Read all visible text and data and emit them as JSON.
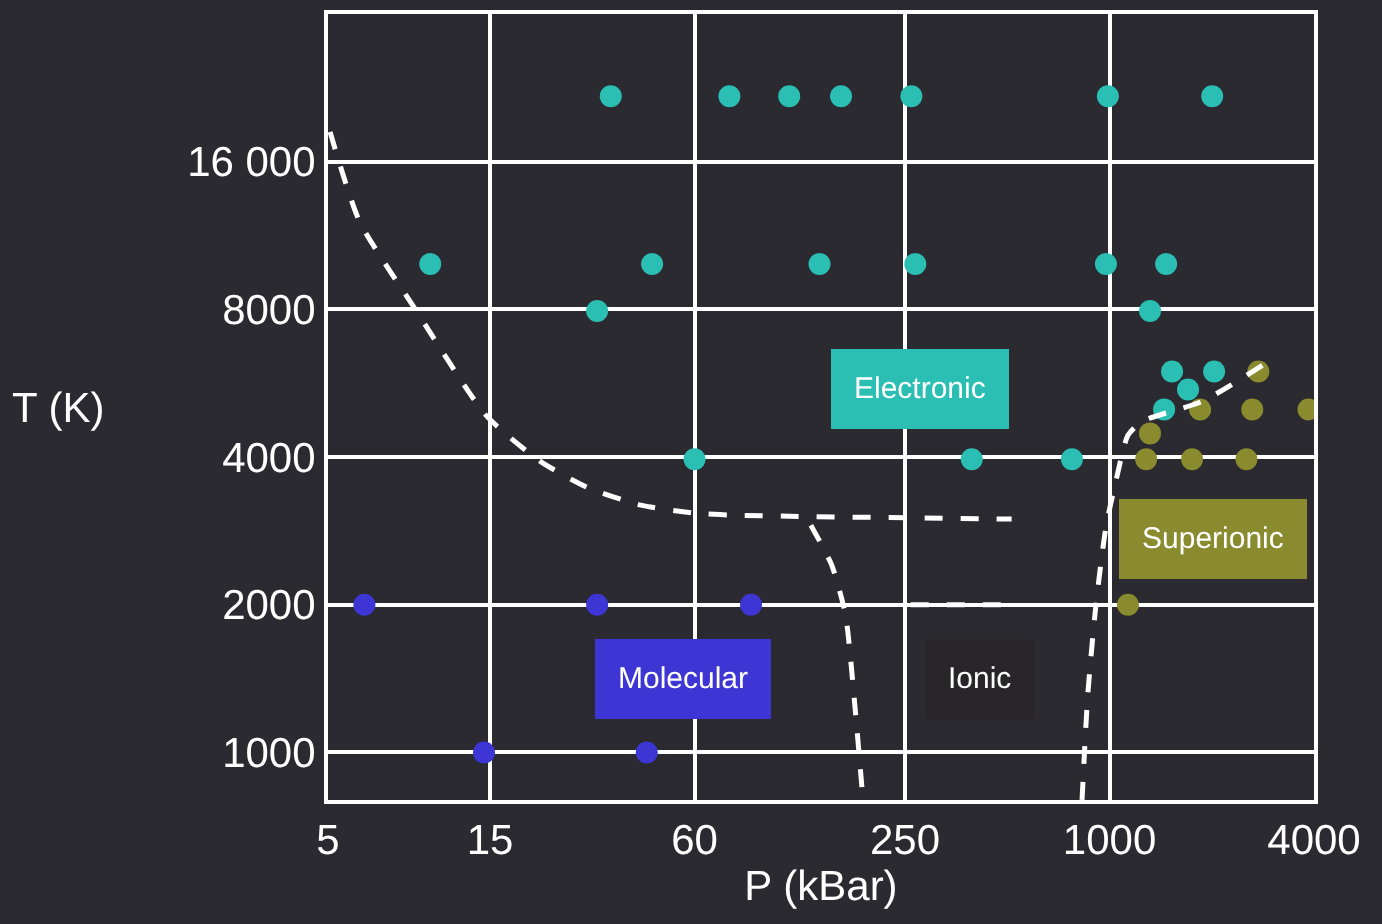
{
  "chart_data": {
    "type": "scatter",
    "xlabel": "P (kBar)",
    "ylabel": "T (K)",
    "log": "xy",
    "grid": true,
    "xlim": [
      5,
      4000
    ],
    "ylim": [
      800,
      32000
    ],
    "xticks": [
      5,
      15,
      60,
      250,
      1000,
      4000
    ],
    "yticks": [
      1000,
      2000,
      4000,
      8000,
      {
        "value": 16000,
        "label": "16 000"
      }
    ],
    "series": [
      {
        "marker": "circle",
        "color": "#2bbfb3",
        "x": [
          34,
          76,
          114,
          162,
          261,
          989,
          2006,
          10,
          45,
          140,
          268,
          976,
          1468,
          31,
          1316,
          60,
          393,
          775,
          1528,
          2032,
          1703,
          1448
        ],
        "values": [
          21750,
          21750,
          21750,
          21750,
          21750,
          21750,
          21750,
          9900,
          9900,
          9900,
          9900,
          9900,
          9900,
          7940,
          7940,
          3960,
          3960,
          3960,
          5975,
          5975,
          5495,
          5003
        ]
      },
      {
        "marker": "circle",
        "color": "#8a8a2e",
        "x": [
          2743,
          1848,
          2632,
          3853,
          1316,
          1282,
          1750,
          2530,
          1133
        ],
        "values": [
          5975,
          5000,
          5000,
          5000,
          4470,
          3960,
          3960,
          3960,
          2000
        ]
      },
      {
        "marker": "circle",
        "color": "#3d35d4",
        "x": [
          6.4,
          31,
          88,
          14.4,
          43.4
        ],
        "values": [
          2000,
          2000,
          2000,
          1000,
          1000
        ]
      },
      {
        "type": "line",
        "marker": "none",
        "color": "#ffffff",
        "line_style": "dashed",
        "x": [
          5.07,
          6.2,
          8.97,
          14.6,
          21.1,
          28.9,
          41.7,
          60,
          82,
          515
        ],
        "values": [
          18400,
          12060,
          8070,
          4865,
          3920,
          3473,
          3192,
          3074,
          3043,
          2990
        ]
      },
      {
        "type": "line",
        "marker": "none",
        "color": "#ffffff",
        "line_style": "dashed",
        "x": [
          132,
          152,
          167,
          178,
          188
        ],
        "values": [
          2906,
          2411,
          1907,
          1240,
          800
        ]
      },
      {
        "type": "line",
        "marker": "none",
        "color": "#ffffff",
        "line_style": "dashed",
        "x": [
          830,
          863,
          912,
          976,
          1044,
          1133,
          1247,
          1874,
          2818
        ],
        "values": [
          800,
          1312,
          1999,
          2880,
          3572,
          4430,
          4730,
          5195,
          6148
        ]
      },
      {
        "type": "line",
        "marker": "none",
        "color": "#ffffff",
        "line_style": "dashed",
        "x": [
          260,
          520
        ],
        "values": [
          2000,
          2000
        ]
      }
    ],
    "annotations": [
      "Electronic",
      "Superionic",
      "Molecular",
      "Ionic"
    ]
  }
}
